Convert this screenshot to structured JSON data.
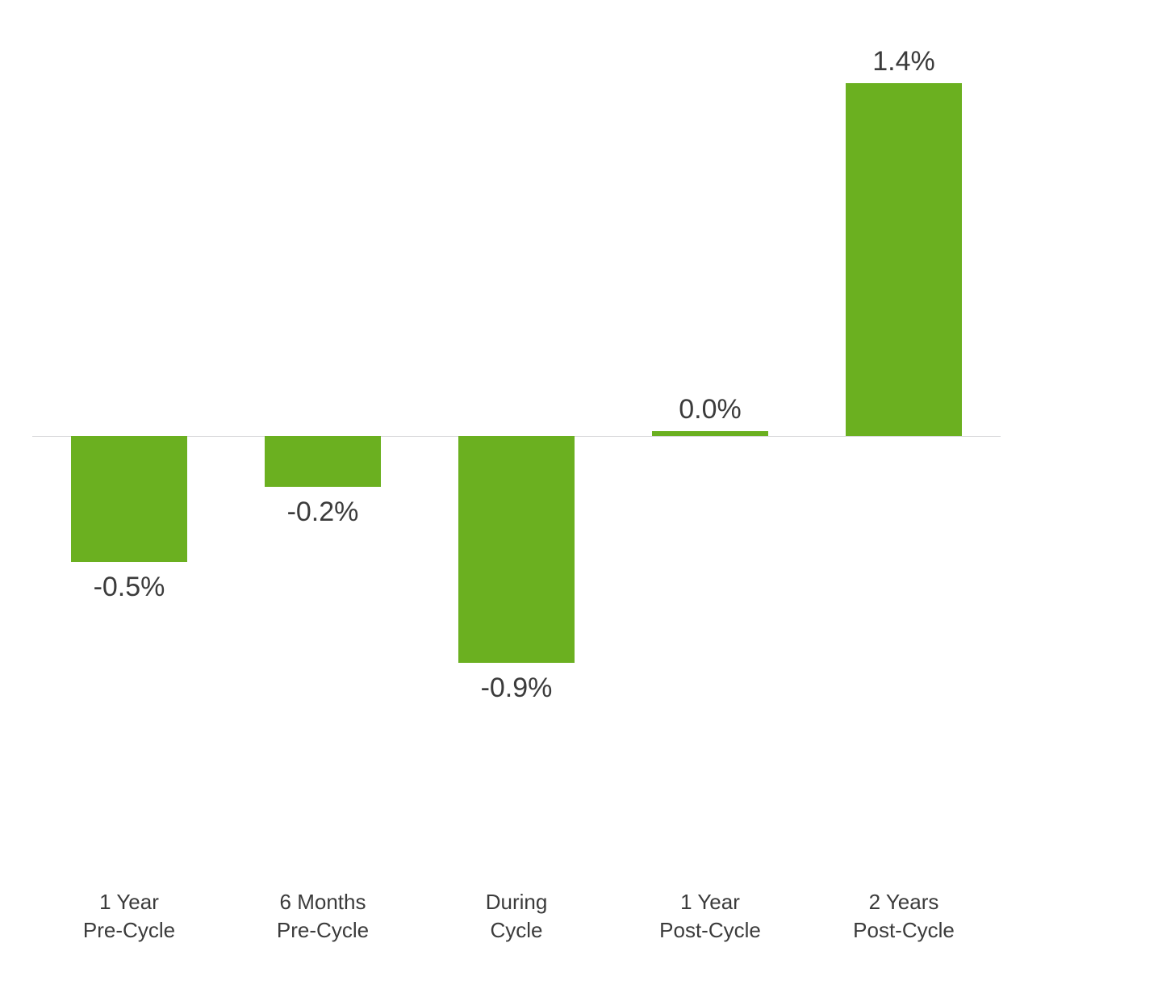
{
  "chart": {
    "type": "bar",
    "background_color": "#ffffff",
    "bar_color": "#6bb020",
    "basis_line_color": "#d6d7d9",
    "text_color": "#3b3b3b",
    "value_fontsize": 34,
    "category_fontsize": 26,
    "bar_width_ratio": 0.6,
    "ylim": [
      -1.6,
      1.6
    ],
    "categories": [
      {
        "label_line1": "1 Year",
        "label_line2": "Pre-Cycle",
        "value": -0.5,
        "value_label": "-0.5%"
      },
      {
        "label_line1": "6 Months",
        "label_line2": "Pre-Cycle",
        "value": -0.2,
        "value_label": "-0.2%"
      },
      {
        "label_line1": "During",
        "label_line2": "Cycle",
        "value": -0.9,
        "value_label": "-0.9%"
      },
      {
        "label_line1": "1 Year",
        "label_line2": "Post-Cycle",
        "value": 0.02,
        "value_label": "0.0%"
      },
      {
        "label_line1": "2 Years",
        "label_line2": "Post-Cycle",
        "value": 1.4,
        "value_label": "1.4%"
      }
    ]
  }
}
